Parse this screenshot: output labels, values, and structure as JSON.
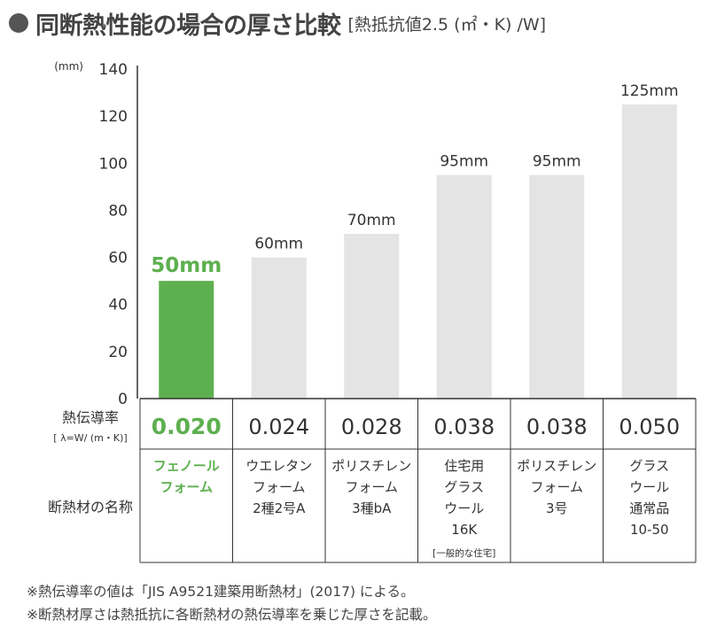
{
  "title": "同断熱性能の場合の厚さ比較",
  "subtitle": "[熱抵抗値2.5 (㎡・K) /W]",
  "chart_data": {
    "type": "bar",
    "y_unit_label": "(mm)",
    "ylim": [
      0,
      140
    ],
    "yticks": [
      0,
      20,
      40,
      60,
      80,
      100,
      120,
      140
    ],
    "grid": false,
    "categories": [
      "フェノールフォーム",
      "ウエレタンフォーム2種2号A",
      "ポリスチレンフォーム3種bA",
      "住宅用グラスウール16K",
      "ポリスチレンフォーム3号",
      "グラスウール通常品10-50"
    ],
    "values": [
      50,
      60,
      70,
      95,
      95,
      125
    ],
    "value_labels": [
      "50mm",
      "60mm",
      "70mm",
      "95mm",
      "95mm",
      "125mm"
    ],
    "highlight_index": 0,
    "colors": {
      "highlight": "#5db04f",
      "bar": "#e4e4e4",
      "axis": "#333333"
    }
  },
  "table": {
    "row1_label": "熱伝導率",
    "row1_sublabel": "[ λ=W/ (m・K)]",
    "row2_label": "断熱材の名称",
    "conductivity": [
      "0.020",
      "0.024",
      "0.028",
      "0.038",
      "0.038",
      "0.050"
    ],
    "names": [
      [
        "フェノール",
        "フォーム"
      ],
      [
        "ウエレタン",
        "フォーム",
        "2種2号A"
      ],
      [
        "ポリスチレン",
        "フォーム",
        "3種bA"
      ],
      [
        "住宅用",
        "グラス",
        "ウール",
        "16K"
      ],
      [
        "ポリスチレン",
        "フォーム",
        "3号"
      ],
      [
        "グラス",
        "ウール",
        "通常品",
        "10-50"
      ]
    ],
    "name_notes": [
      "",
      "",
      "",
      "[一般的な住宅]",
      "",
      ""
    ]
  },
  "notes": [
    "※熱伝導率の値は「JIS A9521建築用断熱材」(2017) による。",
    "※断熱材厚さは熱抵抗に各断熱材の熱伝導率を乗じた厚さを記載。"
  ]
}
